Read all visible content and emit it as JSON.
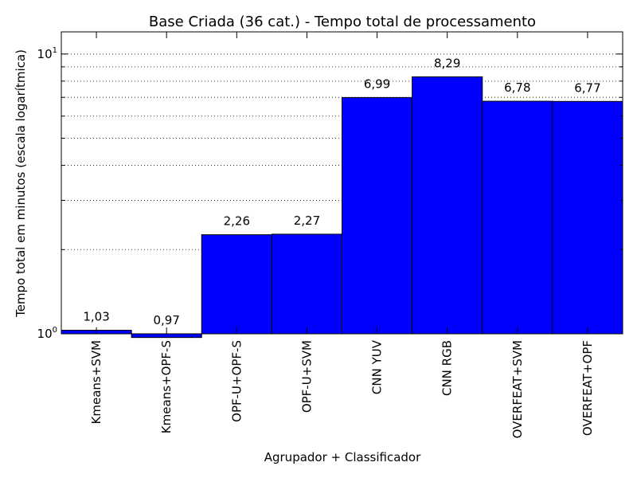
{
  "chart_data": {
    "type": "bar",
    "title": "Base Criada (36 cat.) - Tempo total de processamento",
    "xlabel": "Agrupador + Classificador",
    "ylabel": "Tempo total em minutos (escala logarítmica)",
    "yscale": "log",
    "ylim": [
      1,
      12
    ],
    "yticks": [
      {
        "value": 1,
        "base": "10",
        "exp": "0"
      },
      {
        "value": 10,
        "base": "10",
        "exp": "1"
      }
    ],
    "grid": "horizontal-dotted",
    "bar_color": "#0000ff",
    "categories": [
      "Kmeans+SVM",
      "Kmeans+OPF-S",
      "OPF-U+OPF-S",
      "OPF-U+SVM",
      "CNN YUV",
      "CNN RGB",
      "OVERFEAT+SVM",
      "OVERFEAT+OPF"
    ],
    "values": [
      1.03,
      0.97,
      2.26,
      2.27,
      6.99,
      8.29,
      6.78,
      6.77
    ],
    "value_labels": [
      "1,03",
      "0,97",
      "2,26",
      "2,27",
      "6,99",
      "8,29",
      "6,78",
      "6,77"
    ]
  }
}
